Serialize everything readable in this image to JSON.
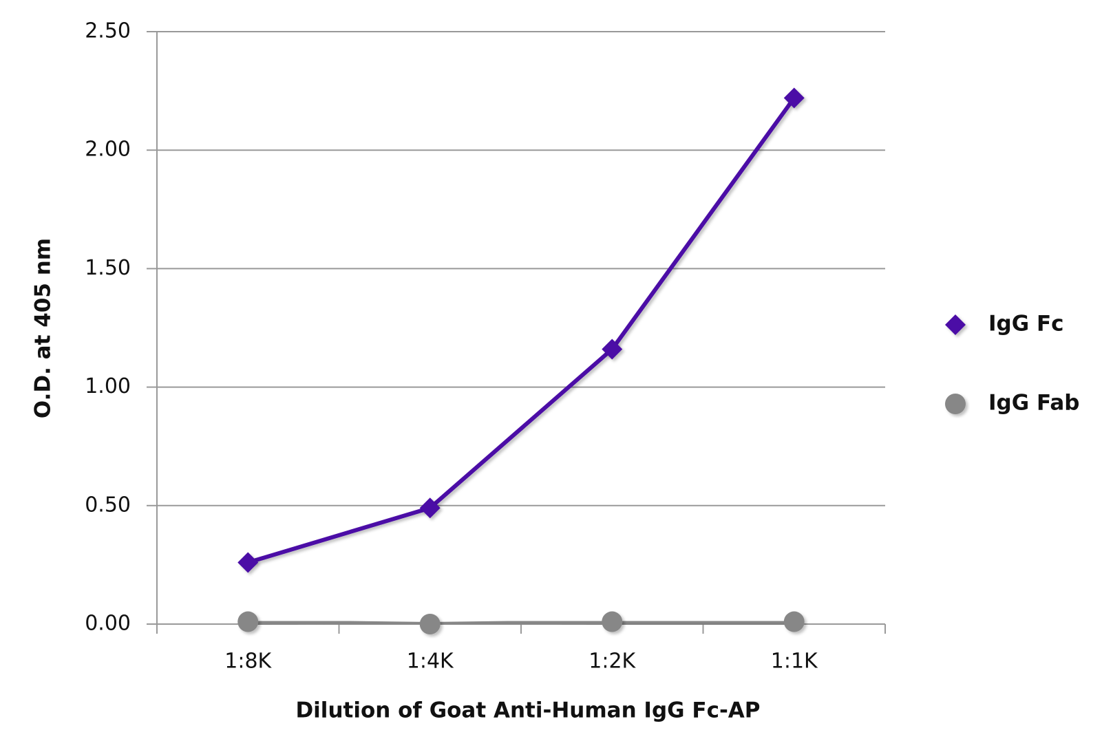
{
  "chart_data": {
    "type": "line",
    "x_label": "Dilution of Goat Anti-Human IgG Fc-AP",
    "y_label": "O.D. at 405 nm",
    "categories": [
      "1:8K",
      "1:4K",
      "1:2K",
      "1:1K"
    ],
    "series": [
      {
        "name": "IgG Fc",
        "color": "#4b0ca6",
        "marker": "diamond",
        "values": [
          0.26,
          0.49,
          1.16,
          2.22
        ]
      },
      {
        "name": "IgG Fab",
        "color": "#878787",
        "marker": "circle",
        "values": [
          0.01,
          0.0,
          0.01,
          0.01
        ]
      }
    ],
    "ylim": [
      0,
      2.5
    ],
    "yticks": [
      {
        "value": 0,
        "label": "0.00"
      },
      {
        "value": 0.5,
        "label": "0.50"
      },
      {
        "value": 1,
        "label": "1.00"
      },
      {
        "value": 1.5,
        "label": "1.50"
      },
      {
        "value": 2,
        "label": "2.00"
      },
      {
        "value": 2.5,
        "label": "2.50"
      }
    ],
    "grid": true,
    "legend": "right"
  }
}
